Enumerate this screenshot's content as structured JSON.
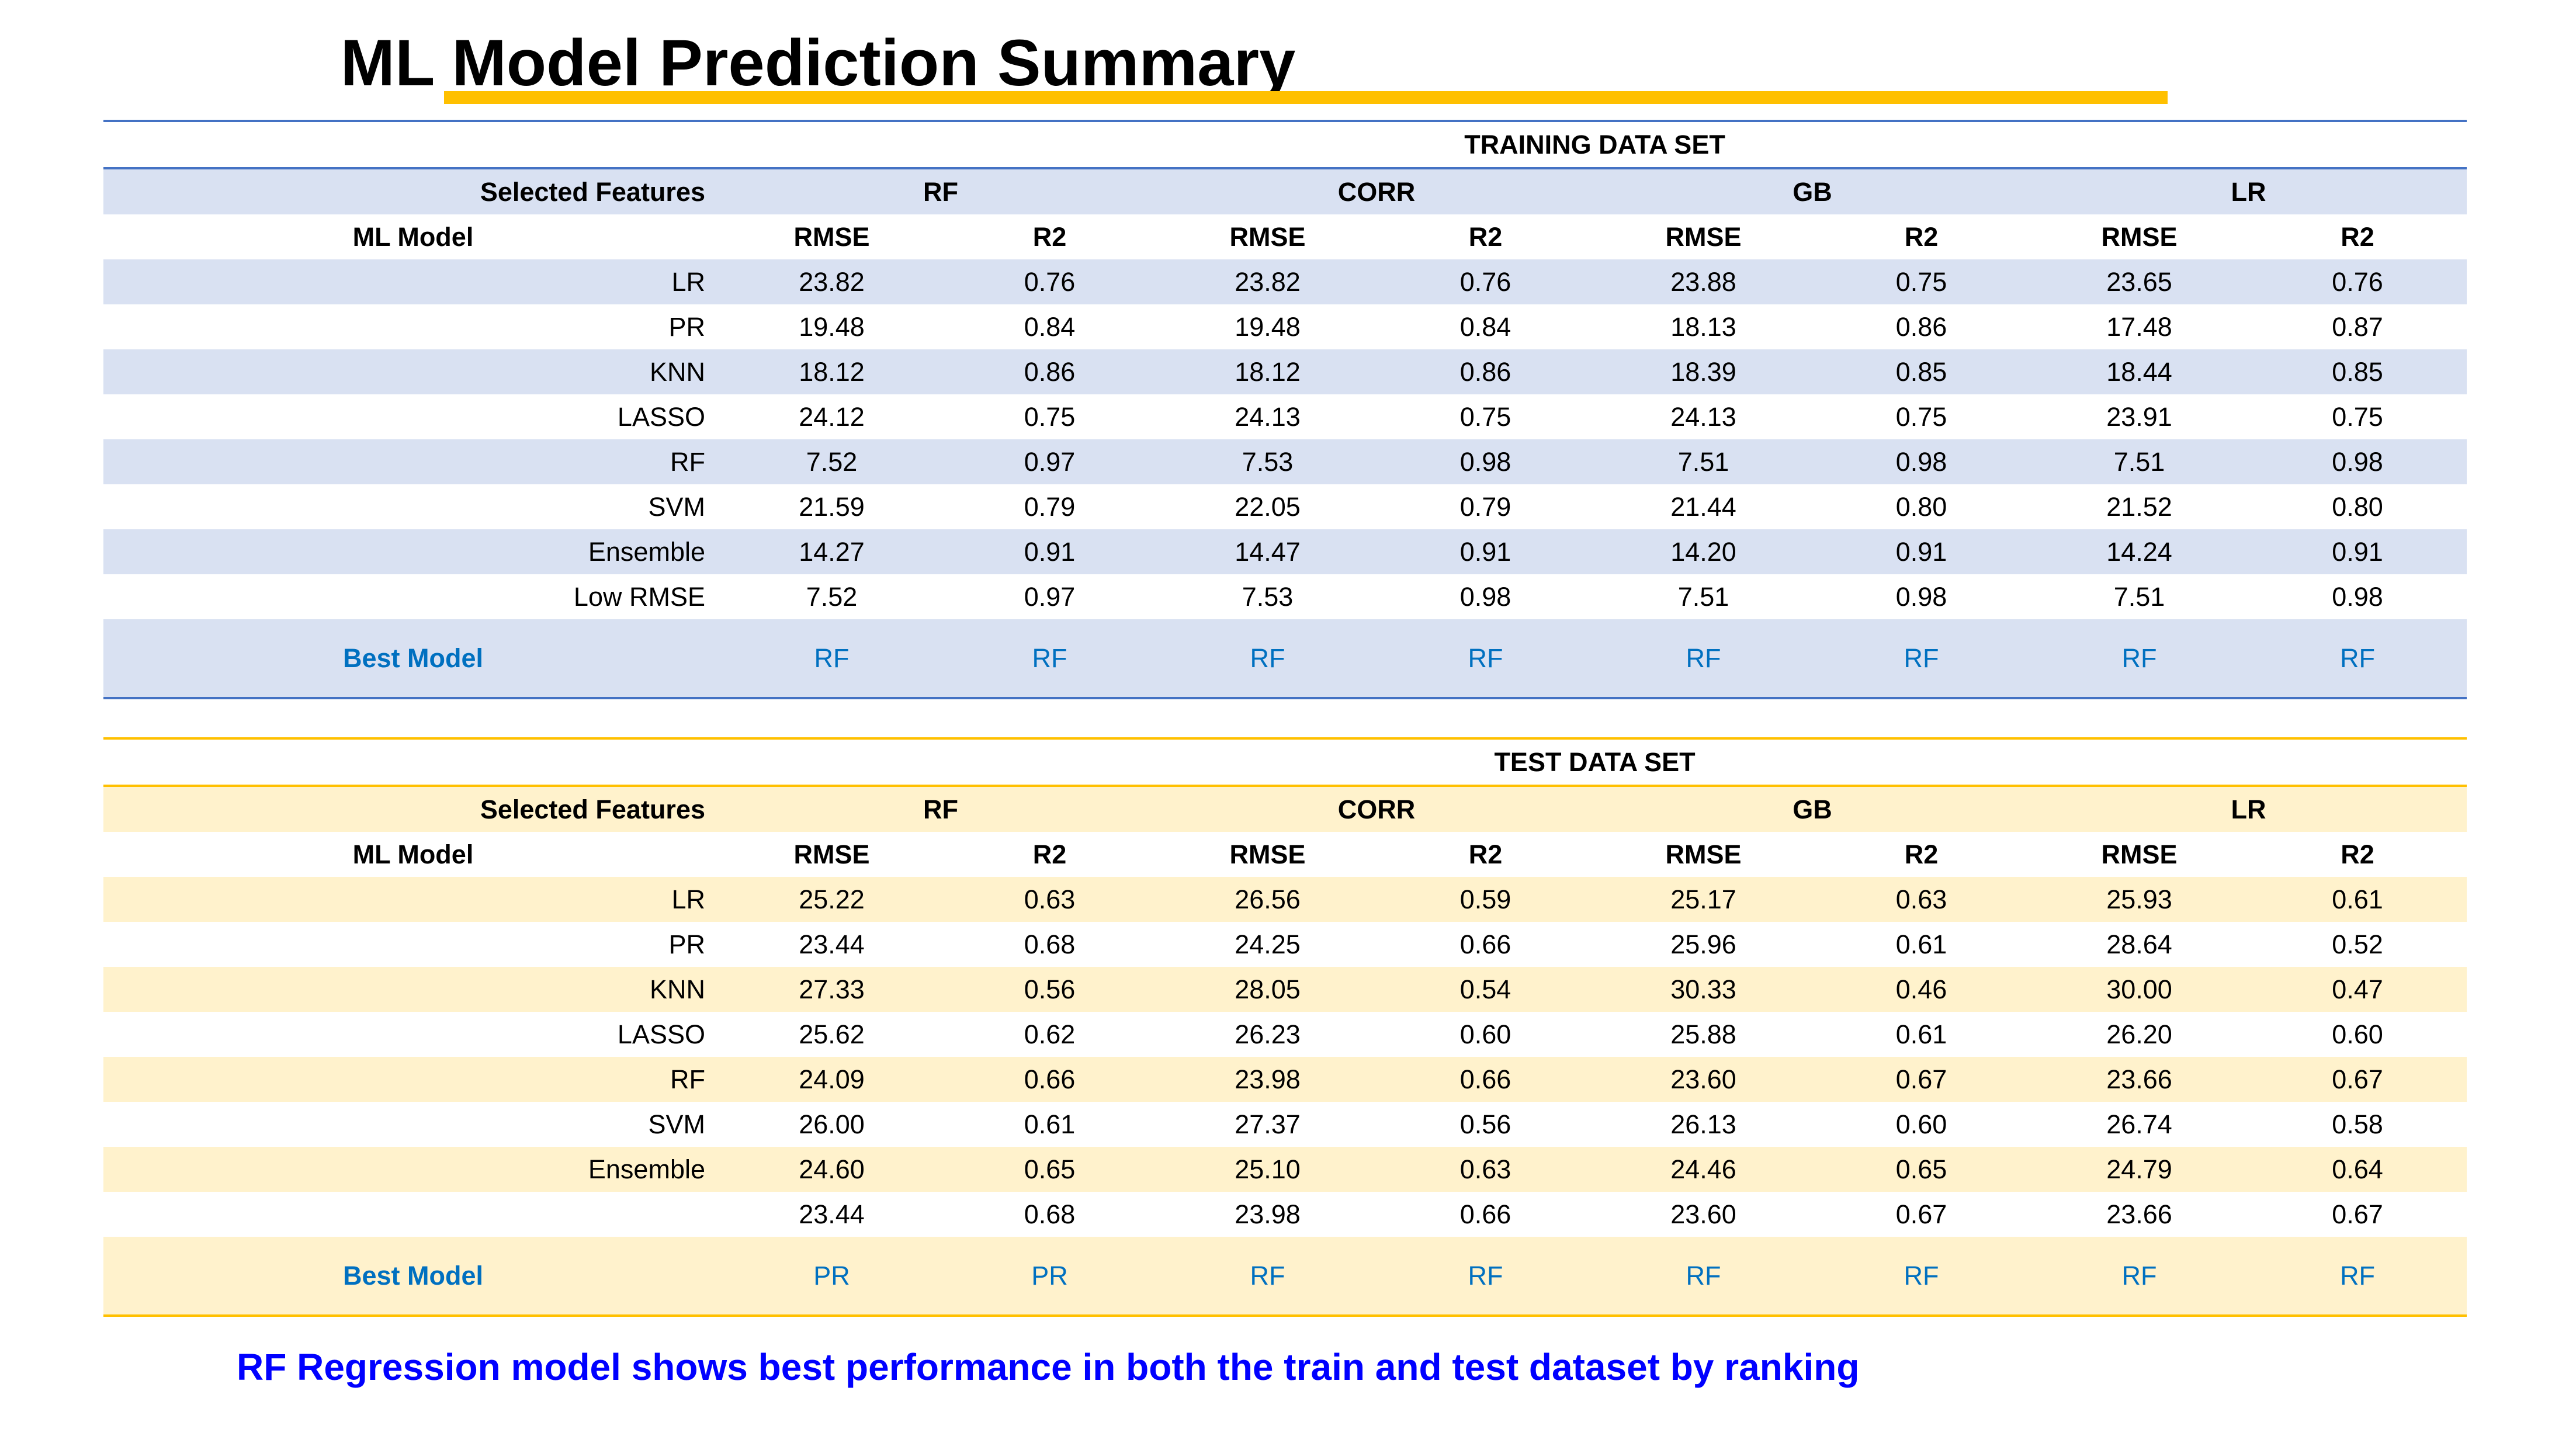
{
  "title": "ML Model Prediction Summary",
  "colors": {
    "title_underline": "#FFC000",
    "train_accent": "#4472C4",
    "train_band": "#D9E1F2",
    "test_accent": "#FFC000",
    "test_band": "#FFF2CC",
    "best_text": "#0070C0",
    "conclusion_text": "#0000FF"
  },
  "train": {
    "section_title": "TRAINING DATA SET",
    "features_label": "Selected Features",
    "features": [
      "RF",
      "CORR",
      "GB",
      "LR"
    ],
    "model_label": "ML Model",
    "metrics": [
      "RMSE",
      "R2",
      "RMSE",
      "R2",
      "RMSE",
      "R2",
      "RMSE",
      "R2"
    ],
    "rows": [
      {
        "model": "LR",
        "values": [
          "23.82",
          "0.76",
          "23.82",
          "0.76",
          "23.88",
          "0.75",
          "23.65",
          "0.76"
        ]
      },
      {
        "model": "PR",
        "values": [
          "19.48",
          "0.84",
          "19.48",
          "0.84",
          "18.13",
          "0.86",
          "17.48",
          "0.87"
        ]
      },
      {
        "model": "KNN",
        "values": [
          "18.12",
          "0.86",
          "18.12",
          "0.86",
          "18.39",
          "0.85",
          "18.44",
          "0.85"
        ]
      },
      {
        "model": "LASSO",
        "values": [
          "24.12",
          "0.75",
          "24.13",
          "0.75",
          "24.13",
          "0.75",
          "23.91",
          "0.75"
        ]
      },
      {
        "model": "RF",
        "values": [
          "7.52",
          "0.97",
          "7.53",
          "0.98",
          "7.51",
          "0.98",
          "7.51",
          "0.98"
        ]
      },
      {
        "model": "SVM",
        "values": [
          "21.59",
          "0.79",
          "22.05",
          "0.79",
          "21.44",
          "0.80",
          "21.52",
          "0.80"
        ]
      },
      {
        "model": "Ensemble",
        "values": [
          "14.27",
          "0.91",
          "14.47",
          "0.91",
          "14.20",
          "0.91",
          "14.24",
          "0.91"
        ]
      },
      {
        "model": "Low RMSE",
        "values": [
          "7.52",
          "0.97",
          "7.53",
          "0.98",
          "7.51",
          "0.98",
          "7.51",
          "0.98"
        ]
      }
    ],
    "best_label": "Best Model",
    "best": [
      "RF",
      "RF",
      "RF",
      "RF",
      "RF",
      "RF",
      "RF",
      "RF"
    ]
  },
  "test": {
    "section_title": "TEST DATA SET",
    "features_label": "Selected Features",
    "features": [
      "RF",
      "CORR",
      "GB",
      "LR"
    ],
    "model_label": "ML Model",
    "metrics": [
      "RMSE",
      "R2",
      "RMSE",
      "R2",
      "RMSE",
      "R2",
      "RMSE",
      "R2"
    ],
    "rows": [
      {
        "model": "LR",
        "values": [
          "25.22",
          "0.63",
          "26.56",
          "0.59",
          "25.17",
          "0.63",
          "25.93",
          "0.61"
        ]
      },
      {
        "model": "PR",
        "values": [
          "23.44",
          "0.68",
          "24.25",
          "0.66",
          "25.96",
          "0.61",
          "28.64",
          "0.52"
        ]
      },
      {
        "model": "KNN",
        "values": [
          "27.33",
          "0.56",
          "28.05",
          "0.54",
          "30.33",
          "0.46",
          "30.00",
          "0.47"
        ]
      },
      {
        "model": "LASSO",
        "values": [
          "25.62",
          "0.62",
          "26.23",
          "0.60",
          "25.88",
          "0.61",
          "26.20",
          "0.60"
        ]
      },
      {
        "model": "RF",
        "values": [
          "24.09",
          "0.66",
          "23.98",
          "0.66",
          "23.60",
          "0.67",
          "23.66",
          "0.67"
        ]
      },
      {
        "model": "SVM",
        "values": [
          "26.00",
          "0.61",
          "27.37",
          "0.56",
          "26.13",
          "0.60",
          "26.74",
          "0.58"
        ]
      },
      {
        "model": "Ensemble",
        "values": [
          "24.60",
          "0.65",
          "25.10",
          "0.63",
          "24.46",
          "0.65",
          "24.79",
          "0.64"
        ]
      },
      {
        "model": "",
        "values": [
          "23.44",
          "0.68",
          "23.98",
          "0.66",
          "23.60",
          "0.67",
          "23.66",
          "0.67"
        ]
      }
    ],
    "best_label": "Best Model",
    "best": [
      "PR",
      "PR",
      "RF",
      "RF",
      "RF",
      "RF",
      "RF",
      "RF"
    ]
  },
  "conclusion": "RF Regression model shows best performance in both the train and test dataset by ranking"
}
